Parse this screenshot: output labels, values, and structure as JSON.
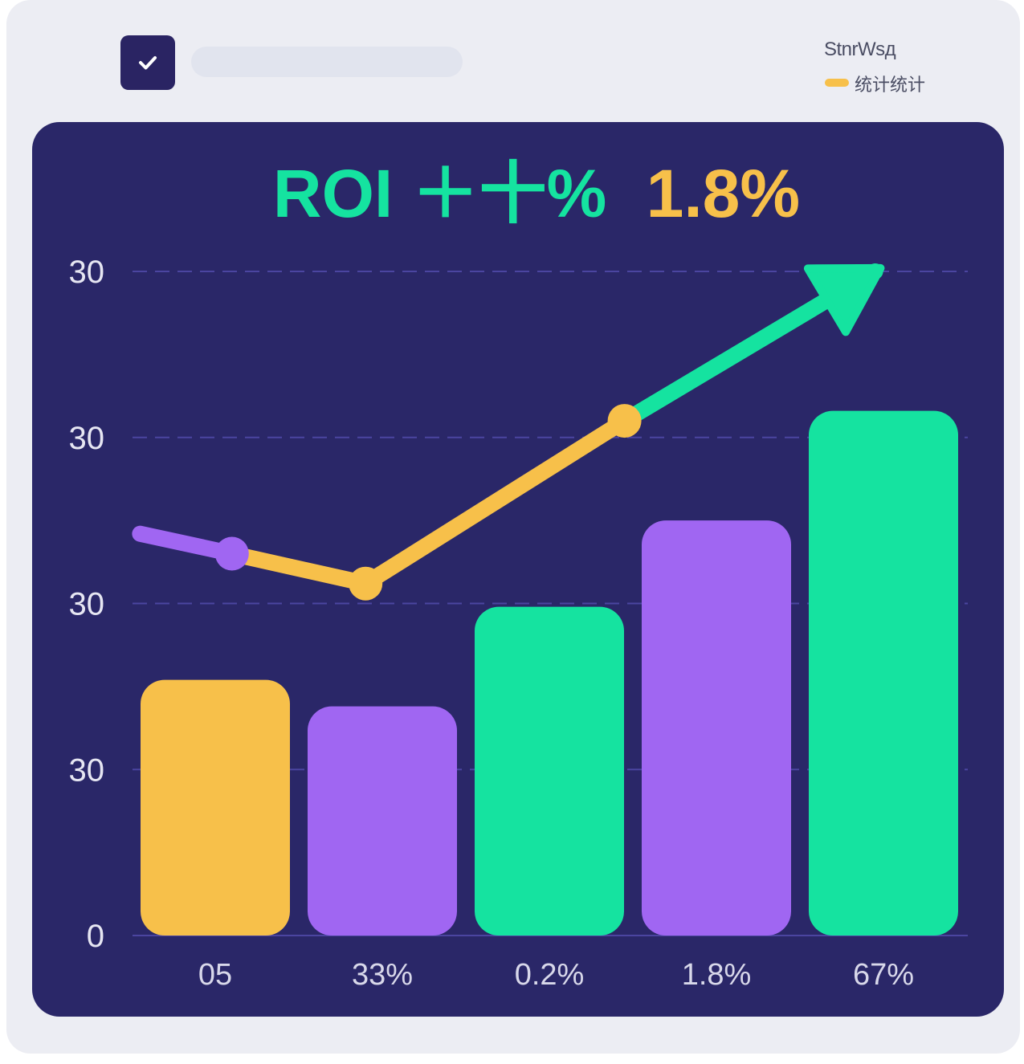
{
  "header": {
    "check_icon": "check-icon",
    "accent_color": "#2a2463"
  },
  "legend": {
    "title": "StnrWsд",
    "entry_label": "统计统计",
    "entry_color": "#f7c04a"
  },
  "chart_data": {
    "type": "bar",
    "title_left": "ROI ＋十%",
    "title_right": "1.8%",
    "title_left_color": "#15e3a0",
    "title_right_color": "#f7c04a",
    "y_tick_labels": [
      "0",
      "30",
      "30",
      "30",
      "30"
    ],
    "categories": [
      "05",
      "33%",
      "0.2%",
      "1.8%",
      "67%"
    ],
    "values": [
      38.5,
      34.5,
      49.5,
      62.5,
      79
    ],
    "ylim": [
      0,
      100
    ],
    "bar_colors": [
      "#f7c04a",
      "#a066f2",
      "#15e3a0",
      "#a066f2",
      "#15e3a0"
    ],
    "trend_line": {
      "x": [
        -0.45,
        0.1,
        0.9,
        2.45,
        3.95
      ],
      "y": [
        60.5,
        57.5,
        53,
        77.5,
        100
      ],
      "segment_colors": [
        "#a066f2",
        "#f7c04a",
        "#f7c04a",
        "#15e3a0"
      ],
      "marker_colors": [
        "#a066f2",
        "#f7c04a",
        "#f7c04a"
      ]
    },
    "grid": true,
    "legend_position": "top-right",
    "background_color": "#2a2768",
    "grid_color": "#4b45a0"
  }
}
